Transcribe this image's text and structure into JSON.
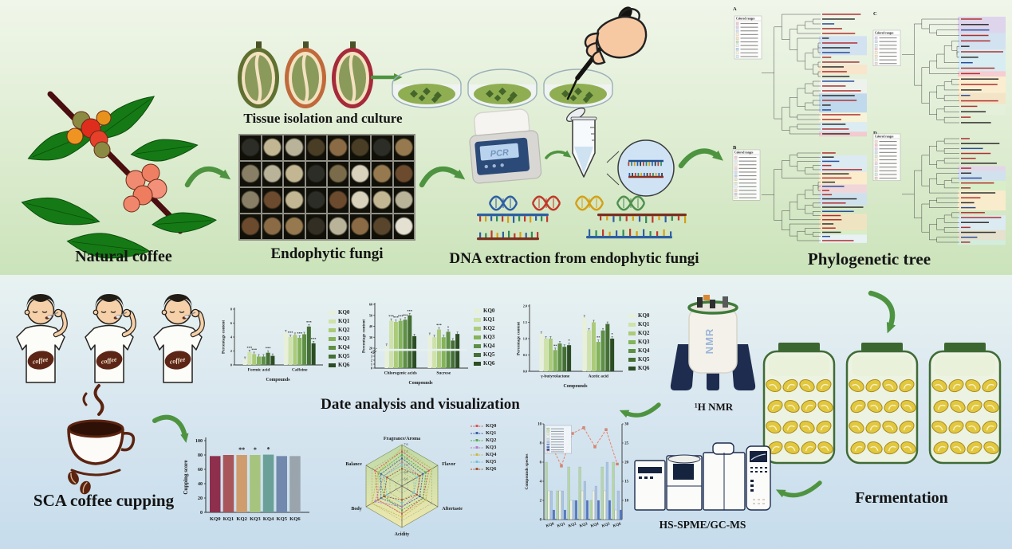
{
  "palette": {
    "kq_greens": [
      "#e9f0d9",
      "#cfe2a9",
      "#abcb79",
      "#85b35a",
      "#5f8f45",
      "#456f34",
      "#2c4d24"
    ],
    "cupping_colors": [
      "#8e2f4e",
      "#a85659",
      "#cf9c6e",
      "#a7c47e",
      "#6ba099",
      "#7289ad",
      "#9aa4ac"
    ],
    "arrow_green": "#4e9440",
    "dna_colors": [
      "#2e5fa3",
      "#c0392b",
      "#d4a017",
      "#4f8f4f"
    ]
  },
  "series_labels": [
    "KQ0",
    "KQ1",
    "KQ2",
    "KQ3",
    "KQ4",
    "KQ5",
    "KQ6"
  ],
  "top": {
    "labels": {
      "natural_coffee": "Natural coffee",
      "tissue": "Tissue isolation and culture",
      "fungi": "Endophytic fungi",
      "dna": "DNA extraction from endophytic fungi",
      "phylo": "Phylogenetic tree"
    },
    "pcr_screen": "PCR",
    "phylo_legend_title": "Colored ranges",
    "phylo_panels": [
      "A",
      "B",
      "C",
      "D"
    ],
    "phylo_band_colors": [
      [
        "#f4c7ce",
        "#ddd2ea",
        "#cfe0f2",
        "#f8eccb",
        "#fbe3c9",
        "#c4e3b4",
        "#eef2ee",
        "#bcd6ee",
        "#f9f3d8",
        "#dcebf6"
      ],
      [
        "#f6c9d0",
        "#dcebf6",
        "#fdeccd",
        "#f4d4da",
        "#cfe0f2",
        "#bcd6ee",
        "#f2e3c2",
        "#d8eec8",
        "#eaf2fa",
        "#f9d9c4",
        "#d4c9e8",
        "#fbf3cf"
      ],
      [
        "#dcd2ec",
        "#cfe0f2",
        "#d6ecf4",
        "#f6c9d0",
        "#fdeccd",
        "#f4e2c4",
        "#e4f0da",
        "#f0d6e4"
      ],
      [
        "#f9dfc4",
        "#f6c9d0",
        "#e4d4ec",
        "#cfe0f2",
        "#d8eec8",
        "#fdeccd",
        "#f4d4da",
        "#dcebf6",
        "#e8e0d0",
        "#d4ecdf",
        "#f2cfc4"
      ]
    ]
  },
  "bottom": {
    "labels": {
      "sca": "SCA coffee cupping",
      "analysis_title": "Date analysis and visualization",
      "nmr": "¹H NMR",
      "gcms": "HS-SPME/GC-MS",
      "fermentation": "Fermentation"
    },
    "shirt_text": "coffee",
    "nmr_body": "NMR"
  },
  "chart_data": [
    {
      "id": "content_formic_caffeine",
      "type": "bar",
      "categories": [
        "Formic acid",
        "Caffeine"
      ],
      "series": [
        {
          "name": "KQ0",
          "values": [
            0.85,
            4.7
          ]
        },
        {
          "name": "KQ1",
          "values": [
            1.85,
            4.0
          ]
        },
        {
          "name": "KQ2",
          "values": [
            1.55,
            4.3
          ]
        },
        {
          "name": "KQ3",
          "values": [
            1.2,
            3.9
          ]
        },
        {
          "name": "KQ4",
          "values": [
            1.2,
            4.4
          ]
        },
        {
          "name": "KQ5",
          "values": [
            1.75,
            5.5
          ]
        },
        {
          "name": "KQ6",
          "values": [
            1.3,
            3.1
          ]
        }
      ],
      "annotations": [
        [
          "",
          "***",
          "***",
          "",
          "",
          "***",
          ""
        ],
        [
          "",
          "***",
          "",
          "***",
          "",
          "***",
          "***"
        ]
      ],
      "ylabel": "Percentage content",
      "xlabel": "Compounds",
      "ylim": [
        0,
        8
      ],
      "yticks": [
        0,
        2,
        4,
        6,
        8
      ],
      "ytick_labels": [
        "0",
        "2",
        "4",
        "6",
        "8"
      ]
    },
    {
      "id": "content_chlorogenic_sucrose",
      "type": "bar",
      "categories": [
        "Chlorogenic acids",
        "Sucrose"
      ],
      "series": [
        {
          "name": "KQ0",
          "values": [
            22,
            32
          ]
        },
        {
          "name": "KQ1",
          "values": [
            45,
            30
          ]
        },
        {
          "name": "KQ2",
          "values": [
            44,
            37
          ]
        },
        {
          "name": "KQ3",
          "values": [
            45,
            30
          ]
        },
        {
          "name": "KQ4",
          "values": [
            46,
            35
          ]
        },
        {
          "name": "KQ5",
          "values": [
            50,
            27
          ]
        },
        {
          "name": "KQ6",
          "values": [
            31,
            33
          ]
        }
      ],
      "annotations": [
        [
          "",
          "***",
          "***",
          "***",
          "***",
          "***",
          ""
        ],
        [
          "",
          "",
          "***",
          "",
          "*",
          "",
          ""
        ]
      ],
      "ylabel": "Percentage content",
      "xlabel": "Compounds",
      "axis_break": true,
      "ylim_lower": [
        0,
        4
      ],
      "ylim_upper": [
        20,
        60
      ],
      "yticks_lower": [
        "0",
        "1",
        "2",
        "3",
        "4"
      ],
      "yticks_upper": [
        "20",
        "30",
        "40",
        "50",
        "60"
      ]
    },
    {
      "id": "content_gbl_acetic",
      "type": "bar",
      "categories": [
        "γ-butyrolactone",
        "Acetic acid"
      ],
      "series": [
        {
          "name": "KQ0",
          "values": [
            1.15,
            1.65
          ]
        },
        {
          "name": "KQ1",
          "values": [
            1.0,
            1.25
          ]
        },
        {
          "name": "KQ2",
          "values": [
            1.0,
            1.5
          ]
        },
        {
          "name": "KQ3",
          "values": [
            0.65,
            0.9
          ]
        },
        {
          "name": "KQ4",
          "values": [
            0.85,
            1.25
          ]
        },
        {
          "name": "KQ5",
          "values": [
            0.75,
            1.45
          ]
        },
        {
          "name": "KQ6",
          "values": [
            0.8,
            1.0
          ]
        }
      ],
      "annotations": [
        [
          "",
          "",
          "",
          "**",
          "",
          "",
          "*"
        ],
        [
          "",
          "",
          "",
          "**",
          "",
          "",
          "*"
        ]
      ],
      "ylabel": "Percentage content",
      "xlabel": "Compounds",
      "ylim": [
        0,
        2
      ],
      "yticks": [
        0,
        0.5,
        1,
        1.5,
        2
      ],
      "ytick_labels": [
        "0.0",
        "0.5",
        "1.0",
        "1.5",
        "2.0"
      ]
    },
    {
      "id": "cupping_score",
      "type": "bar",
      "categories": [
        "KQ0",
        "KQ1",
        "KQ2",
        "KQ3",
        "KQ4",
        "KQ5",
        "KQ6"
      ],
      "values": [
        78.5,
        80,
        80,
        80,
        80.5,
        78.5,
        78.5
      ],
      "annotations": [
        "",
        "",
        "**",
        "*",
        "*",
        "",
        ""
      ],
      "ylabel": "Cupping score",
      "ylim": [
        0,
        100
      ],
      "yticks": [
        0,
        20,
        40,
        60,
        80,
        100
      ],
      "ytick_labels": [
        "0",
        "20",
        "40",
        "60",
        "80",
        "100"
      ],
      "colors": [
        "#8e2f4e",
        "#a85659",
        "#cf9c6e",
        "#a7c47e",
        "#6ba099",
        "#7289ad",
        "#9aa4ac"
      ]
    },
    {
      "id": "sensory_radar",
      "type": "radar",
      "axes": [
        "Fragrance/Aroma",
        "Flavor",
        "Aftertaste",
        "Acidity",
        "Body",
        "Balance"
      ],
      "ring_ticks": [
        7.6,
        7.4,
        7.2,
        7.0,
        6.8,
        6.6
      ],
      "range": [
        6.4,
        7.6
      ],
      "series": [
        {
          "name": "KQ0",
          "color": "#d9534f",
          "values": [
            7.4,
            7.3,
            7.1,
            7.2,
            7.2,
            7.3
          ]
        },
        {
          "name": "KQ1",
          "color": "#3a5fa8",
          "values": [
            7.2,
            7.1,
            7.0,
            7.0,
            7.1,
            7.1
          ]
        },
        {
          "name": "KQ2",
          "color": "#56a556",
          "values": [
            7.3,
            7.2,
            7.1,
            7.1,
            7.0,
            7.2
          ]
        },
        {
          "name": "KQ3",
          "color": "#b07cc6",
          "values": [
            7.1,
            7.0,
            6.9,
            7.0,
            7.3,
            7.0
          ]
        },
        {
          "name": "KQ4",
          "color": "#c9b648",
          "values": [
            7.5,
            7.4,
            7.2,
            7.3,
            7.4,
            7.2
          ]
        },
        {
          "name": "KQ5",
          "color": "#6fc3d6",
          "values": [
            7.0,
            6.9,
            6.8,
            6.9,
            6.9,
            7.0
          ]
        },
        {
          "name": "KQ6",
          "color": "#a0522d",
          "values": [
            6.9,
            7.0,
            6.9,
            6.8,
            7.0,
            6.9
          ]
        }
      ]
    },
    {
      "id": "volatile_compounds",
      "type": "bar+line",
      "x": [
        "KQ0",
        "KQ1",
        "KQ2",
        "KQ3",
        "KQ4",
        "KQ5",
        "KQ6"
      ],
      "left_ylabel": "Compounds species",
      "left_ylim": [
        0,
        10
      ],
      "left_yticks": [
        "0",
        "2",
        "4",
        "6",
        "8",
        "10"
      ],
      "right_ylim": [
        5,
        30
      ],
      "right_yticks": [
        "10",
        "15",
        "20",
        "25",
        "30"
      ],
      "line": {
        "color": "#e8836a",
        "values": [
          25,
          19,
          27.5,
          29,
          24,
          28.5,
          19.5
        ]
      },
      "bar_series": [
        {
          "color": "#b5d6a0",
          "values": [
            6,
            3,
            5.5,
            5.5,
            2,
            5.5,
            6
          ]
        },
        {
          "color": "#eef0df",
          "values": [
            3,
            3,
            2,
            3,
            3,
            3,
            1
          ]
        },
        {
          "color": "#a9c4e4",
          "values": [
            3,
            3,
            2,
            4,
            3.5,
            6,
            3
          ]
        },
        {
          "color": "#4f74c0",
          "values": [
            1,
            1,
            2,
            2,
            2,
            2,
            1
          ]
        }
      ],
      "legend_colors": [
        "#b5d6a0",
        "#cfe3bc",
        "#e4eed4",
        "#eef0df",
        "#cdd9ea",
        "#a9c4e4",
        "#7b98d0",
        "#4f74c0",
        "#1f3a8f"
      ]
    }
  ]
}
